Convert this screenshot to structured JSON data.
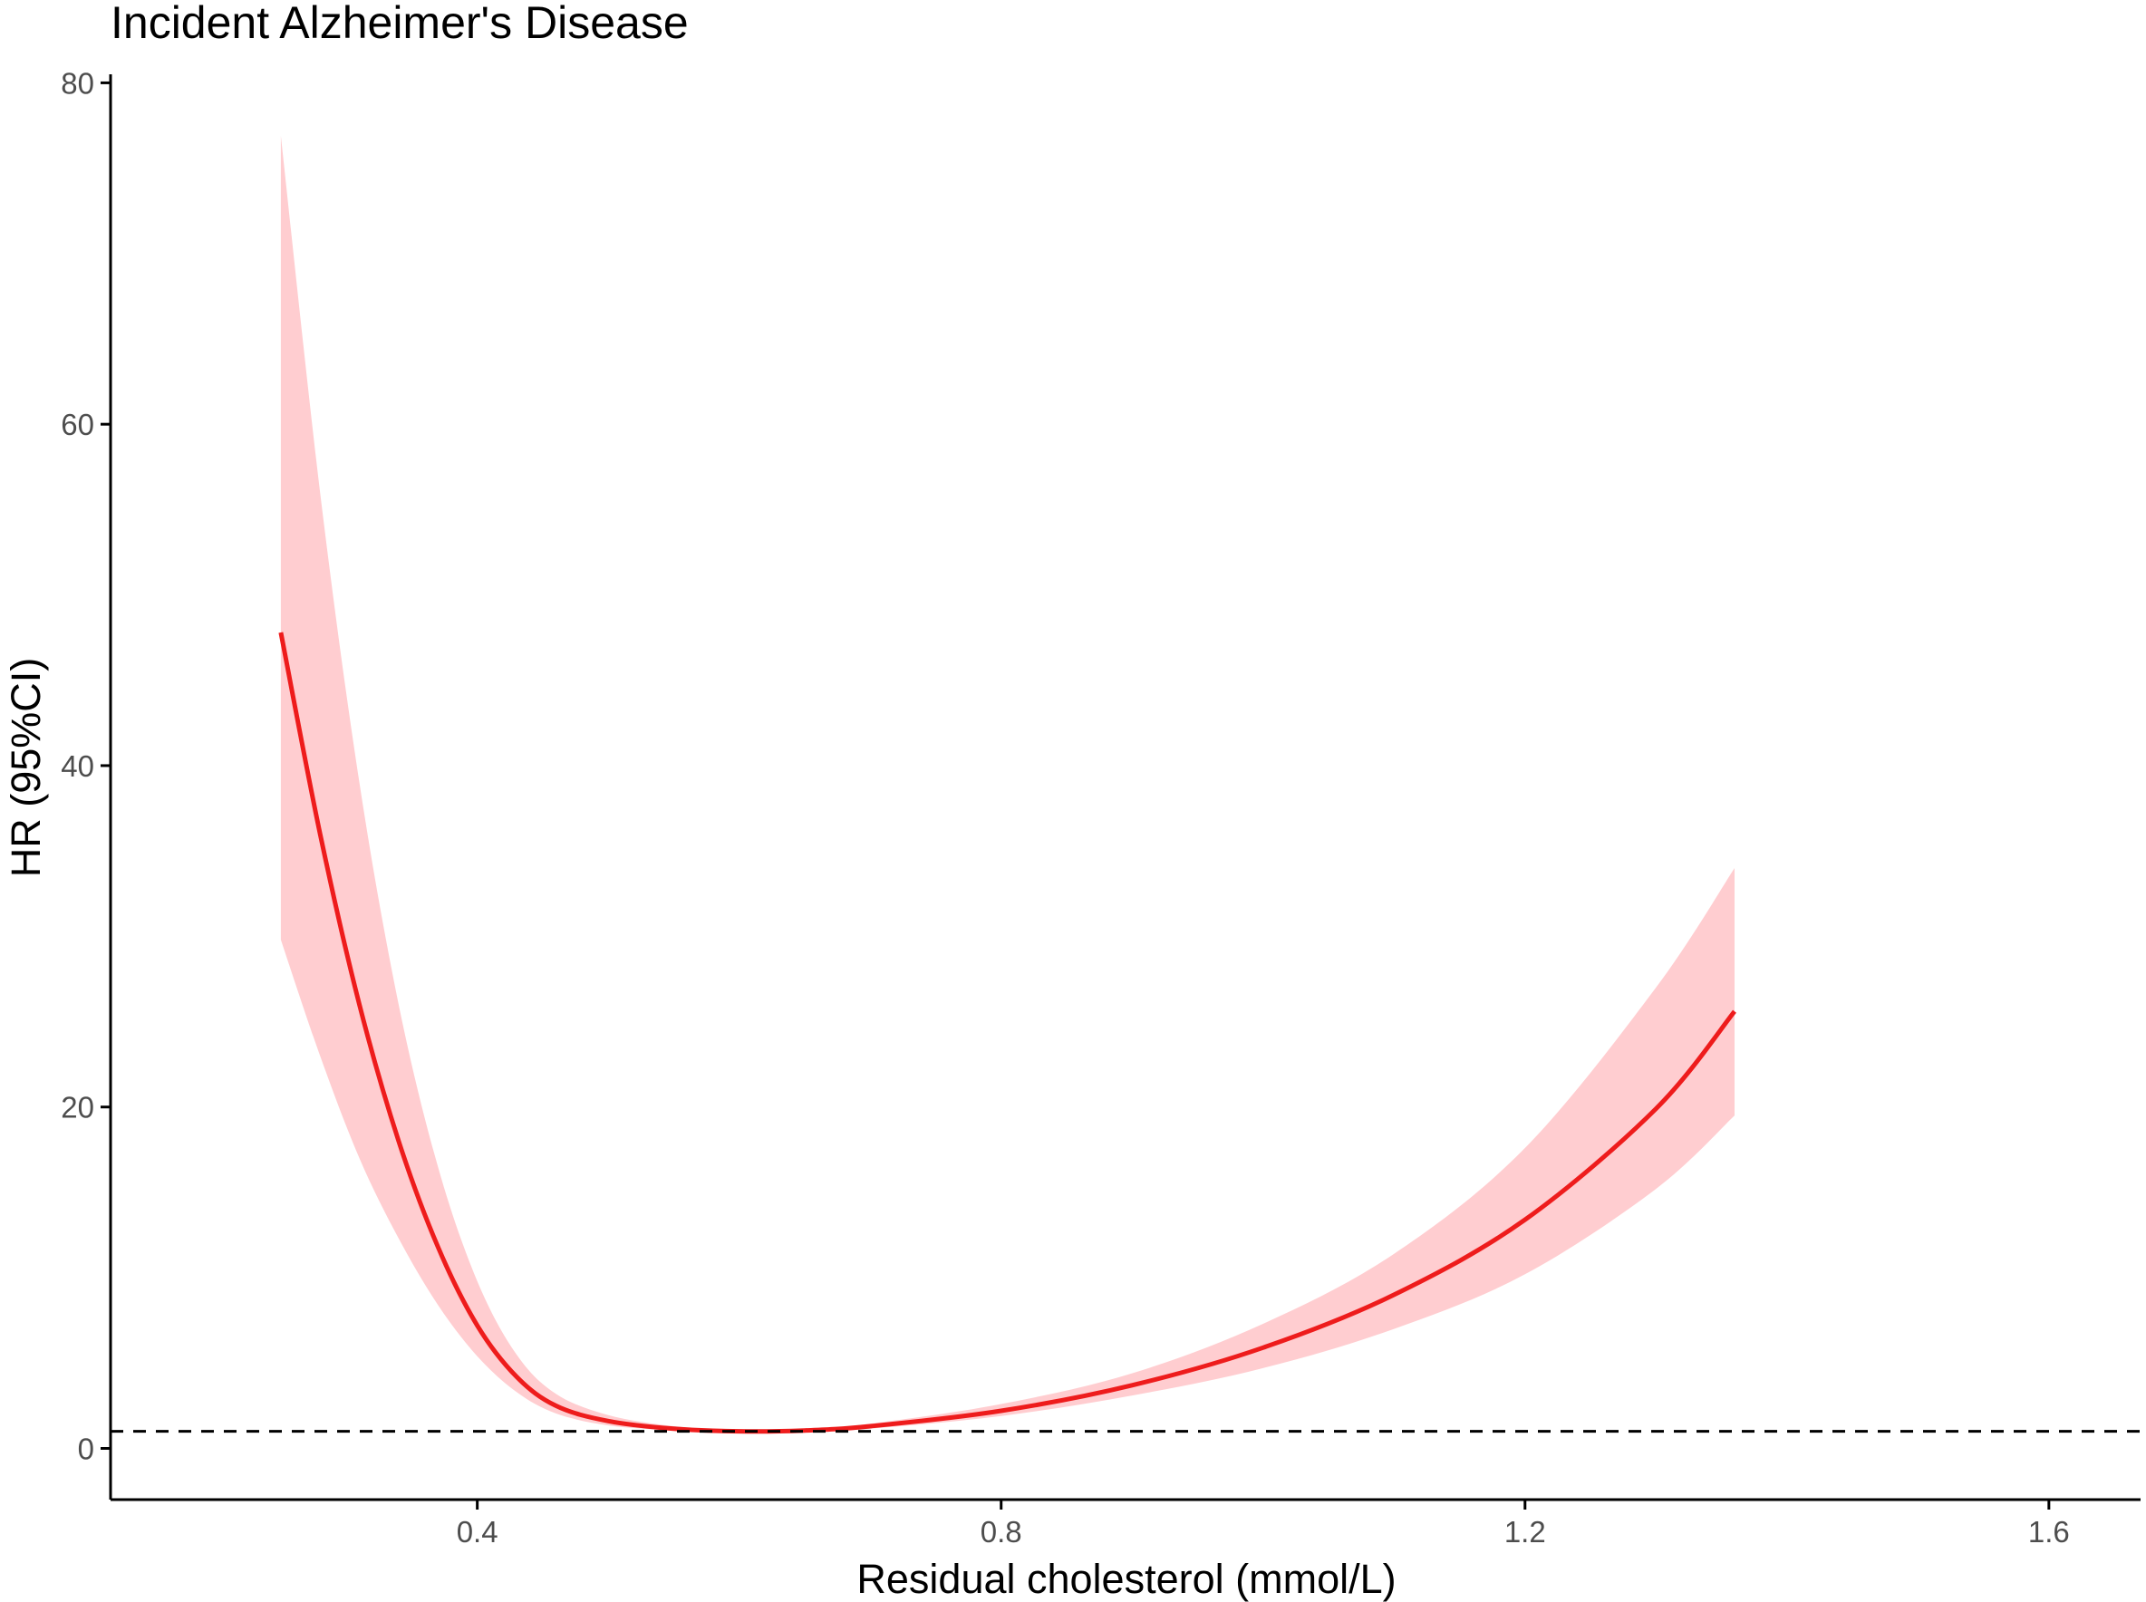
{
  "colors": {
    "curve": "#ee1c1c",
    "ribbon": "#ffcdd0",
    "axis": "#000000",
    "reference_line": "#000000",
    "tick_label": "#4d4d4d"
  },
  "chart_data": {
    "type": "line",
    "title": "Incident Alzheimer's Disease",
    "xlabel": "Residual cholesterol (mmol/L)",
    "ylabel": "HR (95%CI)",
    "xlim": [
      0.12,
      1.67
    ],
    "ylim": [
      -3,
      80.5
    ],
    "x_ticks": [
      0.4,
      0.8,
      1.2,
      1.6
    ],
    "x_tick_labels": [
      "0.4",
      "0.8",
      "1.2",
      "1.6"
    ],
    "y_ticks": [
      0,
      20,
      40,
      60,
      80
    ],
    "y_tick_labels": [
      "0",
      "20",
      "40",
      "60",
      "80"
    ],
    "reference_line": {
      "y": 1,
      "style": "dashed"
    },
    "grid": false,
    "legend": "none",
    "series": [
      {
        "x": [
          0.25,
          0.28,
          0.31,
          0.34,
          0.37,
          0.4,
          0.43,
          0.46,
          0.5,
          0.55,
          0.6,
          0.65,
          0.7,
          0.8,
          0.9,
          1.0,
          1.1,
          1.2,
          1.3,
          1.36
        ],
        "y": [
          47.8,
          36.0,
          26.0,
          18.0,
          11.8,
          7.2,
          4.2,
          2.5,
          1.6,
          1.15,
          1.0,
          1.05,
          1.3,
          2.2,
          3.7,
          5.9,
          9.0,
          13.4,
          19.9,
          25.6
        ],
        "lower": [
          29.8,
          23.0,
          17.0,
          12.3,
          8.4,
          5.4,
          3.3,
          2.05,
          1.35,
          1.05,
          0.9,
          0.95,
          1.15,
          1.9,
          3.1,
          4.7,
          7.0,
          10.2,
          15.2,
          19.5
        ],
        "upper": [
          76.9,
          56.0,
          39.0,
          26.0,
          16.5,
          9.8,
          5.5,
          3.2,
          1.95,
          1.3,
          1.1,
          1.15,
          1.45,
          2.6,
          4.4,
          7.3,
          11.4,
          17.6,
          27.0,
          34.0
        ]
      }
    ]
  }
}
